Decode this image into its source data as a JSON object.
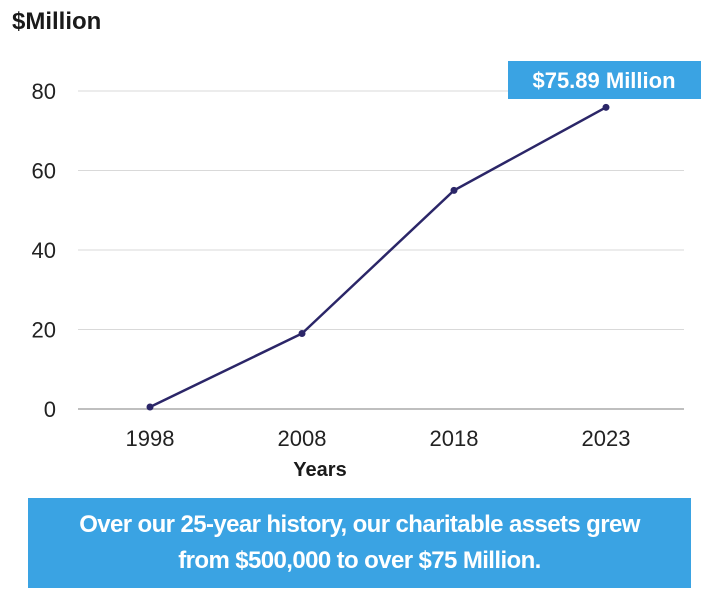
{
  "chart_data": {
    "type": "line",
    "ylabel": "$Million",
    "xlabel": "Years",
    "categories": [
      "1998",
      "2008",
      "2018",
      "2023"
    ],
    "values": [
      0.5,
      19,
      55,
      75.89
    ],
    "ylim": [
      0,
      80
    ],
    "yticks": [
      "0",
      "20",
      "40",
      "60",
      "80"
    ],
    "grid": true,
    "annotation": "$75.89 Million",
    "colors": {
      "line": "#2b2668",
      "grid": "#d9d9d9",
      "axis": "#bfbfbf",
      "annotation_bg": "#3aa3e3",
      "annotation_text": "#ffffff"
    }
  },
  "callout": {
    "text": "Over our 25-year history, our charitable assets grew from $500,000 to over $75 Million."
  }
}
